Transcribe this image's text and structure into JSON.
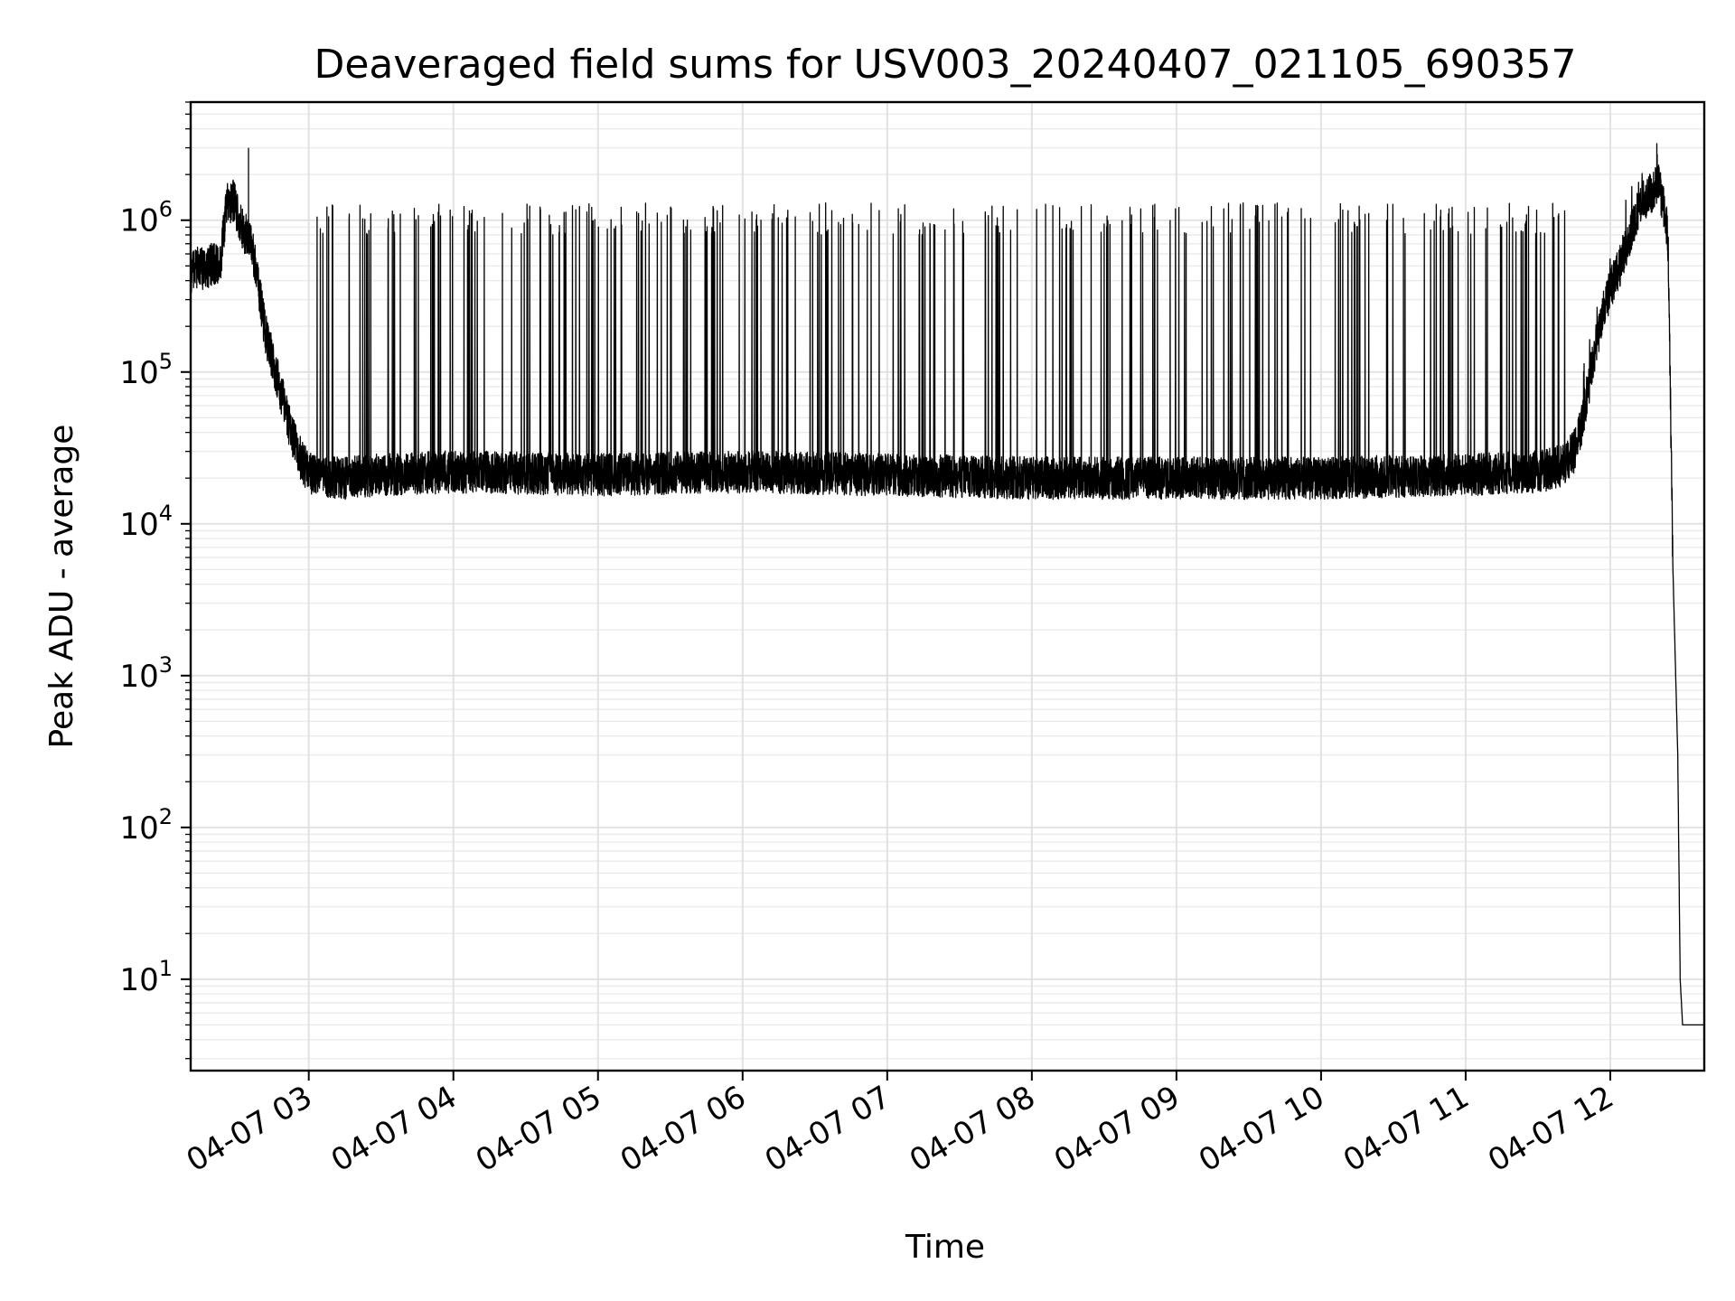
{
  "chart_data": {
    "type": "line",
    "title": "Deaveraged field sums for USV003_20240407_021105_690357",
    "xlabel": "Time",
    "ylabel": "Peak ADU - average",
    "yscale": "log",
    "ylim": [
      2.5,
      6000000
    ],
    "xlim": [
      "2024-04-07 02:11:00",
      "2024-04-07 12:39:00"
    ],
    "grid": true,
    "x_ticks": [
      {
        "value": "2024-04-07 03:00",
        "label": "04-07 03"
      },
      {
        "value": "2024-04-07 04:00",
        "label": "04-07 04"
      },
      {
        "value": "2024-04-07 05:00",
        "label": "04-07 05"
      },
      {
        "value": "2024-04-07 06:00",
        "label": "04-07 06"
      },
      {
        "value": "2024-04-07 07:00",
        "label": "04-07 07"
      },
      {
        "value": "2024-04-07 08:00",
        "label": "04-07 08"
      },
      {
        "value": "2024-04-07 09:00",
        "label": "04-07 09"
      },
      {
        "value": "2024-04-07 10:00",
        "label": "04-07 10"
      },
      {
        "value": "2024-04-07 11:00",
        "label": "04-07 11"
      },
      {
        "value": "2024-04-07 12:00",
        "label": "04-07 12"
      }
    ],
    "y_ticks": [
      {
        "value": 10,
        "base": "10",
        "exp": "1"
      },
      {
        "value": 100,
        "base": "10",
        "exp": "2"
      },
      {
        "value": 1000,
        "base": "10",
        "exp": "3"
      },
      {
        "value": 10000,
        "base": "10",
        "exp": "4"
      },
      {
        "value": 100000,
        "base": "10",
        "exp": "5"
      },
      {
        "value": 1000000,
        "base": "10",
        "exp": "6"
      }
    ],
    "series": [
      {
        "color": "#000000",
        "x": [
          "2024-04-07 02:11",
          "2024-04-07 02:14",
          "2024-04-07 02:17",
          "2024-04-07 02:20",
          "2024-04-07 02:23",
          "2024-04-07 02:26",
          "2024-04-07 02:29",
          "2024-04-07 02:32",
          "2024-04-07 02:34",
          "2024-04-07 02:36",
          "2024-04-07 02:38",
          "2024-04-07 02:40",
          "2024-04-07 02:42",
          "2024-04-07 02:45",
          "2024-04-07 02:48",
          "2024-04-07 02:51",
          "2024-04-07 02:54",
          "2024-04-07 02:57",
          "2024-04-07 03:00",
          "2024-04-07 03:06",
          "2024-04-07 03:15",
          "2024-04-07 03:30",
          "2024-04-07 04:00",
          "2024-04-07 05:00",
          "2024-04-07 06:00",
          "2024-04-07 07:00",
          "2024-04-07 08:00",
          "2024-04-07 09:00",
          "2024-04-07 10:00",
          "2024-04-07 11:00",
          "2024-04-07 11:30",
          "2024-04-07 11:40",
          "2024-04-07 11:45",
          "2024-04-07 11:48",
          "2024-04-07 11:51",
          "2024-04-07 11:54",
          "2024-04-07 11:57",
          "2024-04-07 12:00",
          "2024-04-07 12:04",
          "2024-04-07 12:08",
          "2024-04-07 12:12",
          "2024-04-07 12:16",
          "2024-04-07 12:20",
          "2024-04-07 12:23",
          "2024-04-07 12:24",
          "2024-04-07 12:26",
          "2024-04-07 12:28",
          "2024-04-07 12:29",
          "2024-04-07 12:30",
          "2024-04-07 12:39"
        ],
        "y": [
          450000,
          500000,
          470000,
          520000,
          480000,
          1300000,
          1350000,
          900000,
          800000,
          700000,
          500000,
          300000,
          180000,
          120000,
          80000,
          50000,
          35000,
          26000,
          22000,
          20000,
          20000,
          21000,
          22000,
          21000,
          22000,
          21000,
          20000,
          20000,
          20000,
          21000,
          22000,
          24000,
          30000,
          45000,
          80000,
          150000,
          250000,
          350000,
          500000,
          800000,
          1200000,
          1500000,
          1700000,
          1100000,
          700000,
          5000,
          300,
          10,
          5,
          5
        ]
      }
    ],
    "spikes": {
      "count_approx": 280,
      "peak_range": [
        800000,
        1300000
      ],
      "baseline_range": [
        12000,
        30000
      ],
      "x_range": [
        "2024-04-07 03:00",
        "2024-04-07 11:45"
      ],
      "max_value": 3000000
    }
  }
}
